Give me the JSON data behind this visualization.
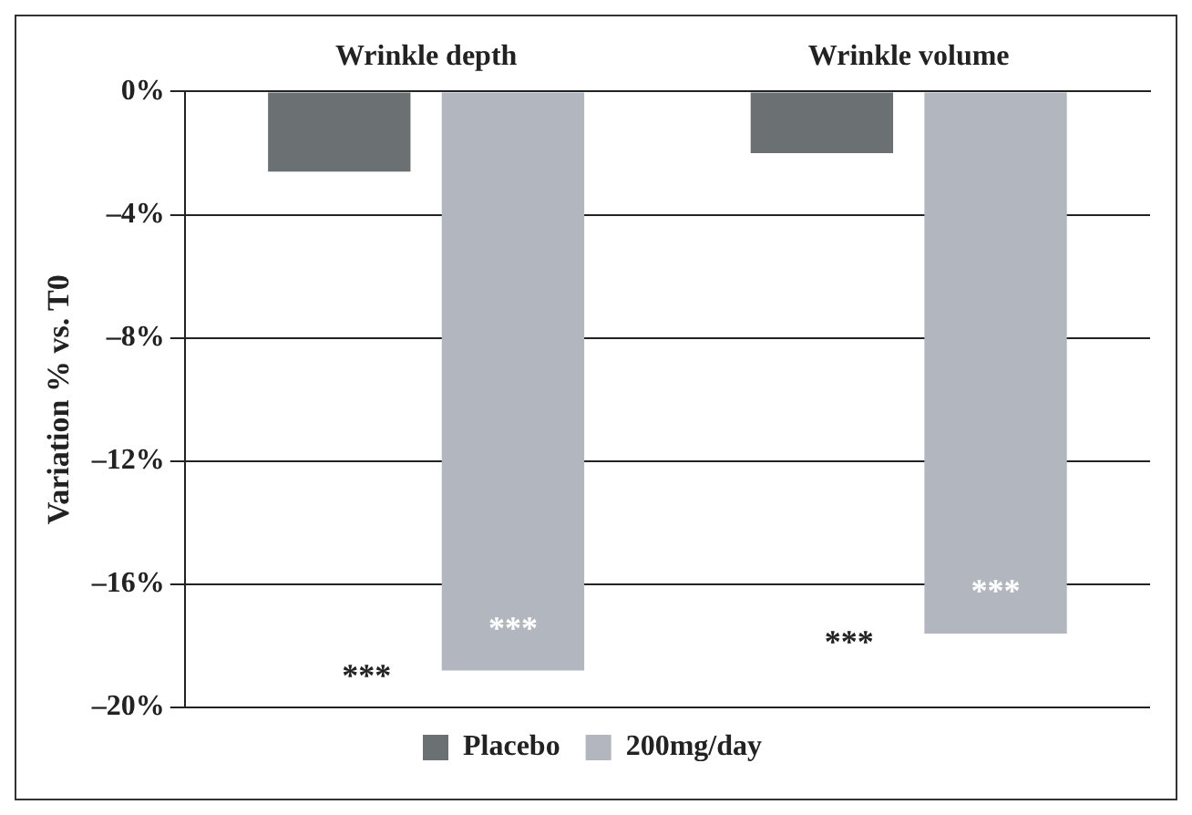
{
  "chart_data": {
    "type": "bar",
    "ylabel": "Variation % vs. T0",
    "categories": [
      "Wrinkle depth",
      "Wrinkle volume"
    ],
    "series": [
      {
        "name": "Placebo",
        "color": "#6b7173",
        "values": [
          -2.6,
          -2.0
        ]
      },
      {
        "name": "200mg/day",
        "color": "#b2b7bf",
        "values": [
          -18.8,
          -17.6
        ]
      }
    ],
    "ylim": [
      -20,
      0
    ],
    "yticks": [
      {
        "value": -20,
        "label": "–20%"
      },
      {
        "value": -16,
        "label": "–16%"
      },
      {
        "value": -12,
        "label": "–12%"
      },
      {
        "value": -8,
        "label": "–8%"
      },
      {
        "value": -4,
        "label": "–4%"
      },
      {
        "value": 0,
        "label": "0%"
      }
    ],
    "grid": "y",
    "legend": "bottom",
    "annotations": [
      "***",
      "***",
      "***",
      "***"
    ]
  }
}
